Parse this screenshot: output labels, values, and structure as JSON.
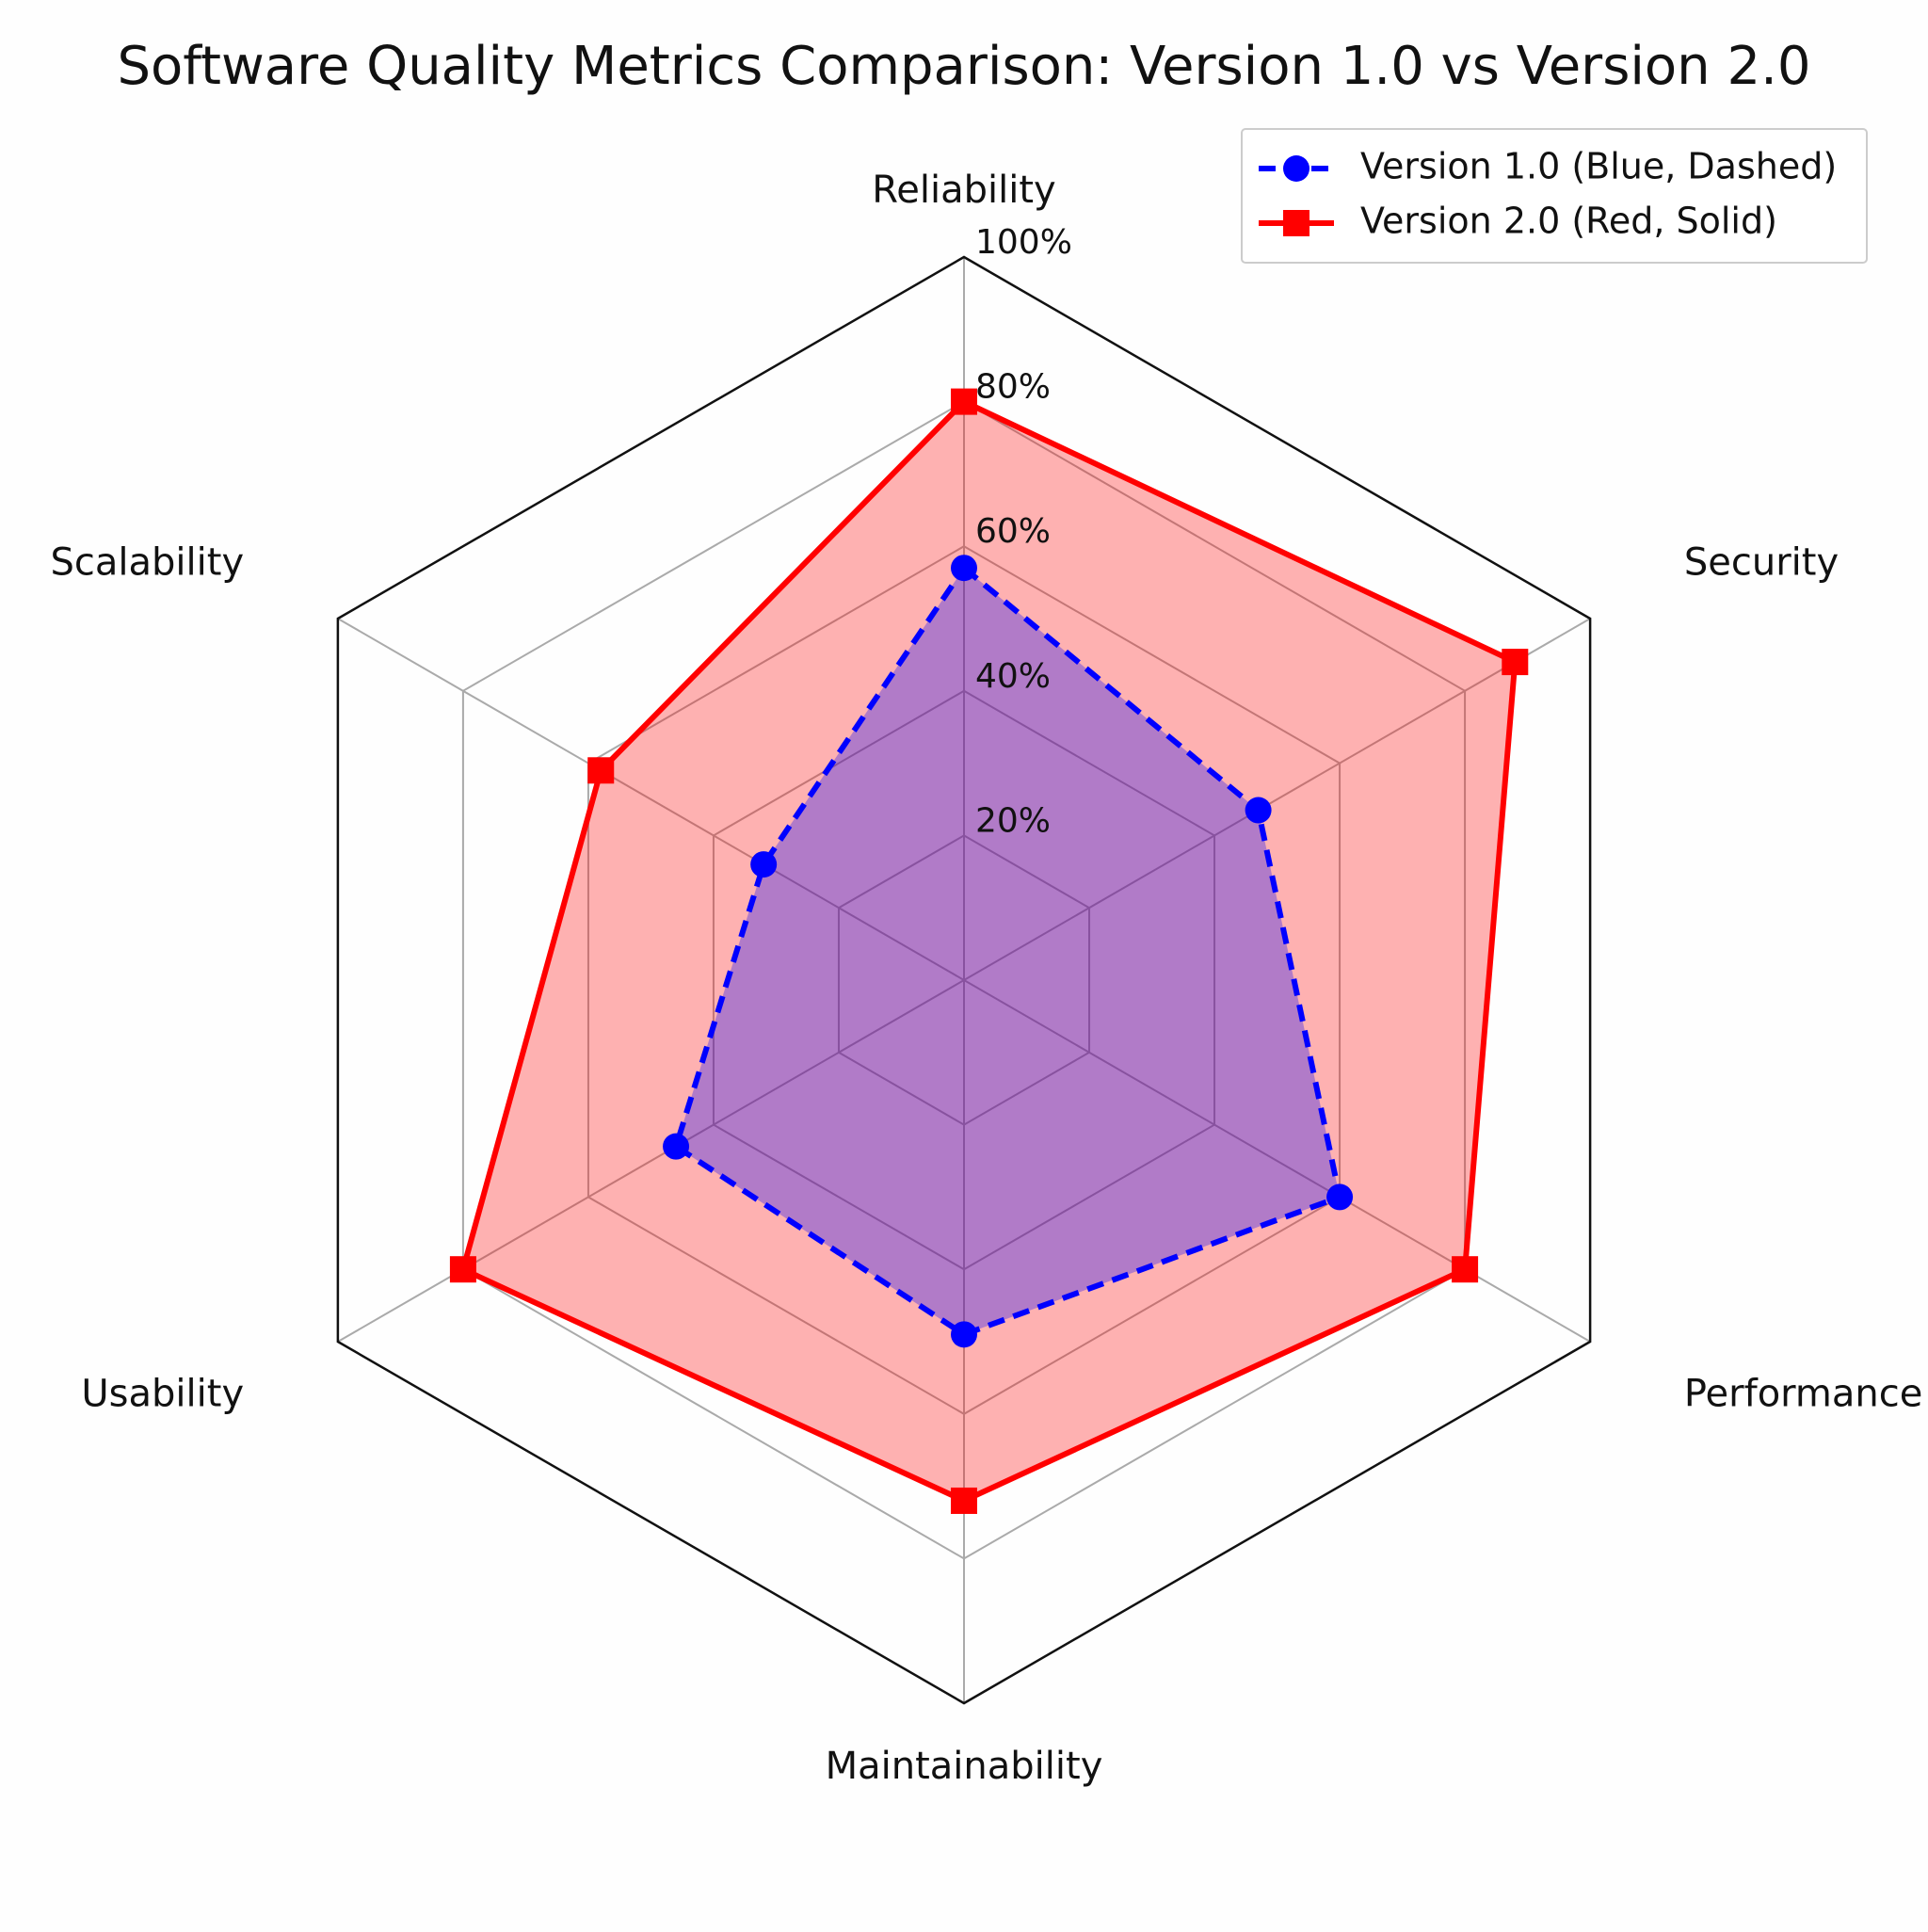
{
  "chart_data": {
    "type": "radar",
    "title": "Software Quality Metrics Comparison: Version 1.0 vs Version 2.0",
    "categories": [
      "Reliability",
      "Security",
      "Performance",
      "Maintainability",
      "Usability",
      "Scalability"
    ],
    "rlim": [
      0,
      100
    ],
    "rticks": [
      {
        "value": 20,
        "label": "20%"
      },
      {
        "value": 40,
        "label": "40%"
      },
      {
        "value": 60,
        "label": "60%"
      },
      {
        "value": 80,
        "label": "80%"
      },
      {
        "value": 100,
        "label": "100%"
      }
    ],
    "grid": true,
    "legend": "upper right",
    "series": [
      {
        "name": "Version 1.0 (Blue, Dashed)",
        "color": "#0000ff",
        "linestyle": "dashed",
        "marker": "circle",
        "values": [
          57,
          47,
          60,
          49,
          46,
          32
        ]
      },
      {
        "name": "Version 2.0 (Red, Solid)",
        "color": "#ff0000",
        "linestyle": "solid",
        "marker": "square",
        "values": [
          80,
          88,
          80,
          72,
          80,
          58
        ]
      }
    ]
  }
}
